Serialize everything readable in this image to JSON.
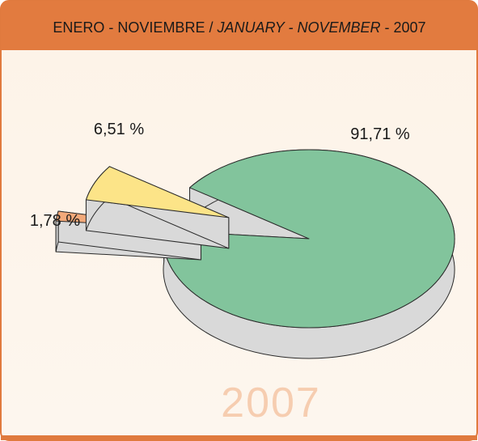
{
  "chart_data": {
    "type": "pie3d",
    "title": {
      "spanish": "ENERO - NOVIEMBRE /",
      "english": "JANUARY - NOVEMBER",
      "year": "- 2007"
    },
    "watermark": "2007",
    "categories": [
      null,
      null,
      null
    ],
    "values": [
      91.71,
      6.51,
      1.78
    ],
    "value_labels": [
      "91,71 %",
      "6,51 %",
      "1,78 %"
    ],
    "colors": [
      "#82c49c",
      "#fce488",
      "#f2a97a"
    ],
    "side_color": "#d9d9d9"
  }
}
